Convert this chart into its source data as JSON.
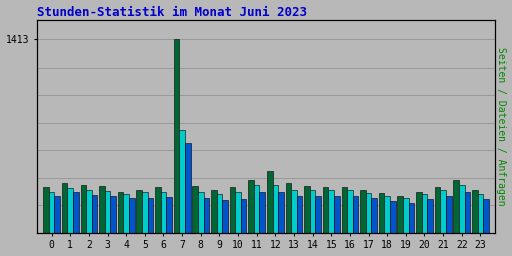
{
  "title": "Stunden-Statistik im Monat Juni 2023",
  "title_color": "#0000cc",
  "background_color": "#b8b8b8",
  "plot_background": "#b8b8b8",
  "ylabel_right": "Seiten / Dateien / Anfragen",
  "ylabel_right_color": "#008800",
  "hours": [
    0,
    1,
    2,
    3,
    4,
    5,
    6,
    7,
    8,
    9,
    10,
    11,
    12,
    13,
    14,
    15,
    16,
    17,
    18,
    19,
    20,
    21,
    22,
    23
  ],
  "seiten": [
    330,
    360,
    350,
    340,
    300,
    315,
    330,
    1413,
    340,
    315,
    335,
    385,
    450,
    360,
    340,
    335,
    335,
    310,
    290,
    270,
    295,
    330,
    385,
    315
  ],
  "dateien": [
    300,
    325,
    315,
    305,
    280,
    295,
    300,
    750,
    300,
    280,
    300,
    345,
    345,
    315,
    308,
    308,
    308,
    290,
    270,
    252,
    285,
    308,
    345,
    285
  ],
  "anfragen": [
    265,
    295,
    278,
    265,
    250,
    255,
    260,
    650,
    255,
    240,
    245,
    300,
    295,
    270,
    265,
    265,
    265,
    250,
    228,
    220,
    245,
    265,
    300,
    245
  ],
  "seiten_color": "#006633",
  "dateien_color": "#00cccc",
  "anfragen_color": "#0055cc",
  "bar_width": 0.3,
  "ylim_max": 1550,
  "ytick_label": "1413",
  "ytick_value": 1413,
  "grid_color": "#999999",
  "border_color": "#000000",
  "font_family": "monospace",
  "title_fontsize": 9,
  "tick_fontsize": 7,
  "ylabel_right_fontsize": 7
}
